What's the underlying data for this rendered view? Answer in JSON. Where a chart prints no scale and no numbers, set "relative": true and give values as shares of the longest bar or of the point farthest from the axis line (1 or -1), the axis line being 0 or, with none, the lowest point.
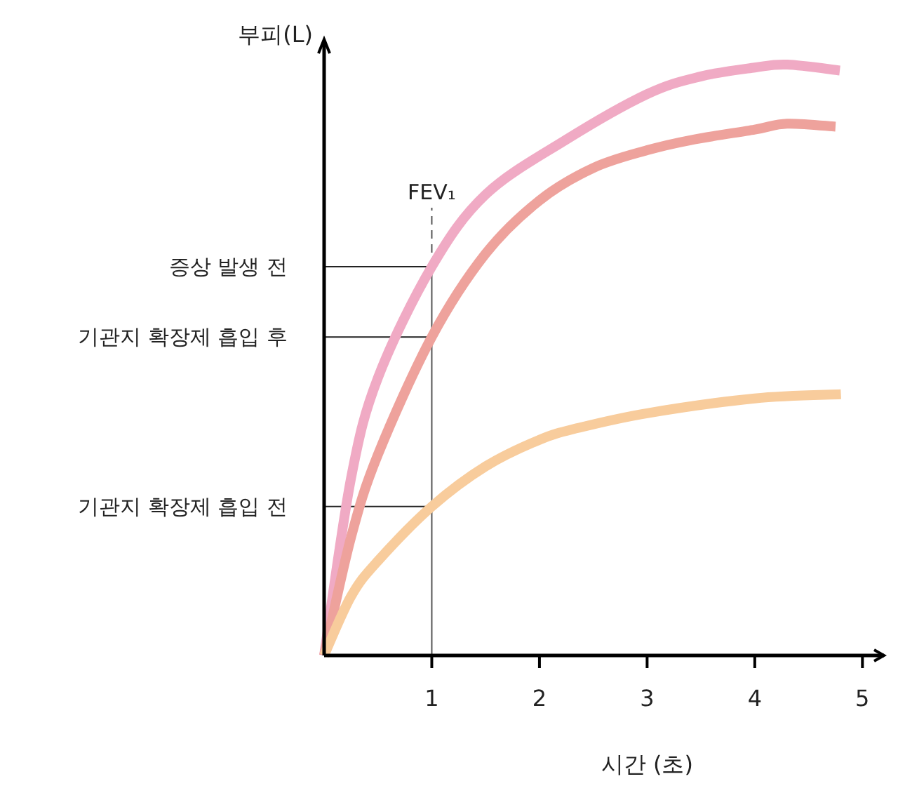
{
  "chart_data": {
    "type": "line",
    "relative": true,
    "xlabel": "시간 (초)",
    "ylabel": "부피(L)",
    "xlim": [
      0,
      5.2
    ],
    "xticks": [
      1,
      2,
      3,
      4,
      5
    ],
    "tick_labels": "x",
    "line_style": "solid",
    "series": [
      {
        "color": "#f0aac4",
        "x": [
          0,
          0.25,
          0.5,
          1,
          1.5,
          2.24,
          3,
          3.5,
          4,
          4.3,
          4.79
        ],
        "values": [
          0,
          0.3,
          0.47,
          0.658,
          0.78,
          0.872,
          0.95,
          0.98,
          0.995,
          1,
          0.99
        ]
      },
      {
        "color": "#eea29c",
        "x": [
          0,
          0.25,
          0.5,
          1,
          1.5,
          2,
          2.5,
          3,
          3.4,
          4,
          4.3,
          4.75
        ],
        "values": [
          0,
          0.2,
          0.34,
          0.539,
          0.68,
          0.77,
          0.825,
          0.855,
          0.872,
          0.89,
          0.9,
          0.895
        ]
      },
      {
        "color": "#f8cc9c",
        "x": [
          0,
          0.25,
          0.5,
          1,
          1.5,
          2,
          2.36,
          3,
          4,
          4.8
        ],
        "values": [
          0,
          0.1,
          0.16,
          0.252,
          0.32,
          0.365,
          0.385,
          0.41,
          0.435,
          0.442
        ]
      }
    ],
    "ref_lines": [
      {
        "axis": "x",
        "value": 1,
        "label": "FEV₁"
      },
      {
        "axis": "y",
        "value": 0.658,
        "label": "증상 발생 전"
      },
      {
        "axis": "y",
        "value": 0.539,
        "label": "기관지 확장제 흡입 후"
      },
      {
        "axis": "y",
        "value": 0.252,
        "label": "기관지 확장제 흡입 전"
      }
    ]
  }
}
